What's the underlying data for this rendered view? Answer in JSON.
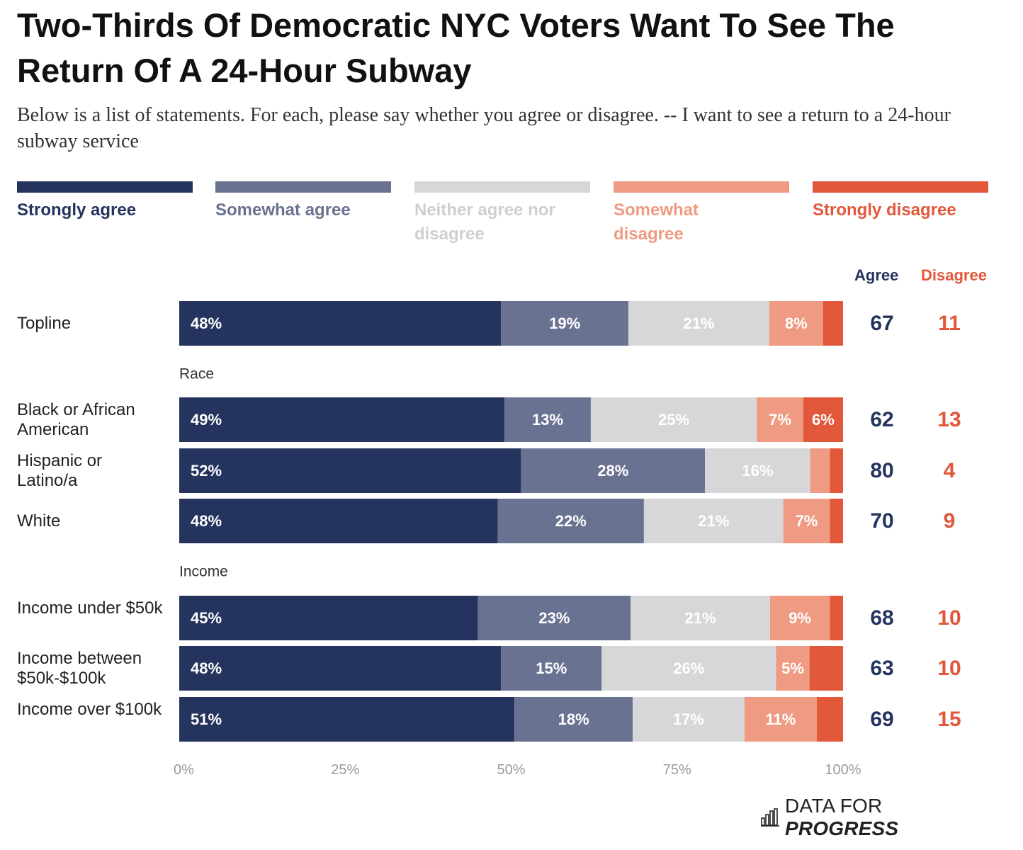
{
  "title": "Two-Thirds Of Democratic NYC Voters Want To See The Return Of A 24-Hour Subway",
  "subtitle": "Below is a list of statements. For each, please say whether you agree or disagree. -- I want to see a return to a 24-hour subway service",
  "colors": {
    "strongly_agree": "#25345e",
    "somewhat_agree": "#6a7292",
    "neither": "#d7d7d9",
    "somewhat_disagree": "#ef9a82",
    "strongly_disagree": "#e1583a",
    "agree_text": "#25345e",
    "disagree_text": "#e1583a",
    "neither_legend_text": "#cfcfcf"
  },
  "legend": [
    {
      "label": "Strongly agree",
      "color": "#25345e"
    },
    {
      "label": "Somewhat agree",
      "color": "#6a7292"
    },
    {
      "label": "Neither agree nor disagree",
      "color": "#d7d7d9"
    },
    {
      "label": "Somewhat disagree",
      "color": "#ef9a82"
    },
    {
      "label": "Strongly disagree",
      "color": "#e1583a"
    }
  ],
  "columns": {
    "agree": "Agree",
    "disagree": "Disagree"
  },
  "footer": {
    "brand_left": "DATA FOR",
    "brand_right": "PROGRESS",
    "icon": "bar-chart-icon"
  },
  "chart_data": {
    "type": "bar",
    "orientation": "horizontal",
    "stacked": true,
    "xlim": [
      0,
      100
    ],
    "x_ticks": [
      "0%",
      "25%",
      "50%",
      "75%",
      "100%"
    ],
    "series_names": [
      "Strongly agree",
      "Somewhat agree",
      "Neither agree nor disagree",
      "Somewhat disagree",
      "Strongly disagree"
    ],
    "groups": [
      {
        "heading": "",
        "rows": [
          {
            "label": "Topline",
            "values": [
              48,
              19,
              21,
              8,
              3
            ],
            "labels": [
              "48%",
              "19%",
              "21%",
              "8%",
              ""
            ],
            "agree": 67,
            "disagree": 11
          }
        ]
      },
      {
        "heading": "Race",
        "rows": [
          {
            "label": "Black or African American",
            "values": [
              49,
              13,
              25,
              7,
              6
            ],
            "labels": [
              "49%",
              "13%",
              "25%",
              "7%",
              "6%"
            ],
            "agree": 62,
            "disagree": 13
          },
          {
            "label": "Hispanic or Latino/a",
            "values": [
              52,
              28,
              16,
              3,
              2
            ],
            "labels": [
              "52%",
              "28%",
              "16%",
              "",
              ""
            ],
            "agree": 80,
            "disagree": 4
          },
          {
            "label": "White",
            "values": [
              48,
              22,
              21,
              7,
              2
            ],
            "labels": [
              "48%",
              "22%",
              "21%",
              "7%",
              ""
            ],
            "agree": 70,
            "disagree": 9
          }
        ]
      },
      {
        "heading": "Income",
        "rows": [
          {
            "label": "Income under $50k",
            "values": [
              45,
              23,
              21,
              9,
              2
            ],
            "labels": [
              "45%",
              "23%",
              "21%",
              "9%",
              ""
            ],
            "agree": 68,
            "disagree": 10
          },
          {
            "label": "Income between $50k-$100k",
            "values": [
              48,
              15,
              26,
              5,
              5
            ],
            "labels": [
              "48%",
              "15%",
              "26%",
              "5%",
              ""
            ],
            "agree": 63,
            "disagree": 10
          },
          {
            "label": "Income over $100k",
            "values": [
              51,
              18,
              17,
              11,
              4
            ],
            "labels": [
              "51%",
              "18%",
              "17%",
              "11%",
              ""
            ],
            "agree": 69,
            "disagree": 15
          }
        ]
      }
    ]
  }
}
